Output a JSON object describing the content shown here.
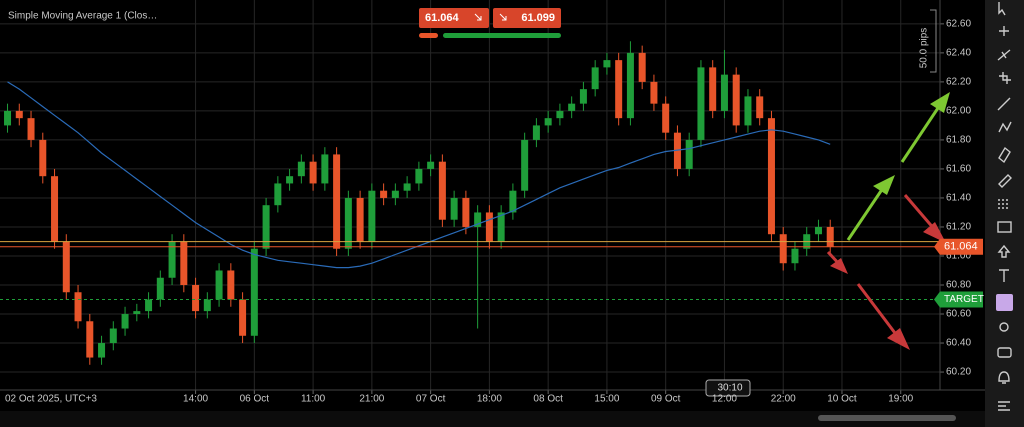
{
  "chart_data": {
    "type": "candlestick",
    "indicator_label": "Simple Moving Average 1 (Clos…",
    "pips_label": "50.0 pips",
    "timer": "30:10",
    "x_start_label": "02 Oct 2025, UTC+3",
    "up_color": "#1f9e3a",
    "down_color": "#e8552a",
    "open": [
      61.9,
      62.0,
      61.95,
      61.8,
      61.55,
      61.1,
      60.75,
      60.55,
      60.3,
      60.4,
      60.5,
      60.6,
      60.62,
      60.7,
      60.85,
      61.1,
      60.8,
      60.62,
      60.7,
      60.9,
      60.7,
      60.45,
      61.05,
      61.35,
      61.5,
      61.55,
      61.65,
      61.5,
      61.7,
      61.05,
      61.4,
      61.1,
      61.45,
      61.4,
      61.45,
      61.5,
      61.6,
      61.65,
      61.25,
      61.4,
      61.2,
      61.3,
      61.1,
      61.3,
      61.45,
      61.8,
      61.9,
      61.95,
      62.0,
      62.05,
      62.15,
      62.3,
      62.35,
      61.95,
      62.4,
      62.2,
      62.05,
      61.85,
      61.6,
      61.8,
      62.3,
      62.0,
      62.25,
      61.9,
      62.1,
      61.95,
      61.15,
      60.95,
      61.05,
      61.15,
      61.2
    ],
    "high": [
      62.05,
      62.05,
      62.0,
      61.85,
      61.6,
      61.15,
      60.8,
      60.6,
      60.45,
      60.55,
      60.65,
      60.67,
      60.75,
      60.9,
      61.15,
      61.15,
      60.85,
      60.75,
      60.95,
      60.95,
      60.75,
      61.1,
      61.4,
      61.55,
      61.6,
      61.7,
      61.7,
      61.75,
      61.75,
      61.45,
      61.45,
      61.5,
      61.5,
      61.5,
      61.55,
      61.65,
      61.7,
      61.7,
      61.45,
      61.45,
      61.35,
      61.35,
      61.35,
      61.5,
      61.85,
      61.95,
      62.0,
      62.05,
      62.1,
      62.2,
      62.35,
      62.4,
      62.4,
      62.48,
      62.45,
      62.25,
      62.1,
      61.9,
      61.85,
      62.35,
      62.35,
      62.42,
      62.3,
      62.15,
      62.15,
      62.0,
      61.2,
      61.1,
      61.2,
      61.25,
      61.25
    ],
    "low": [
      61.85,
      61.9,
      61.75,
      61.5,
      61.05,
      60.7,
      60.5,
      60.25,
      60.25,
      60.35,
      60.45,
      60.55,
      60.57,
      60.65,
      60.8,
      60.75,
      60.57,
      60.57,
      60.65,
      60.65,
      60.4,
      60.4,
      61.0,
      61.3,
      61.45,
      61.5,
      61.45,
      61.45,
      61.0,
      61.0,
      61.05,
      61.05,
      61.35,
      61.35,
      61.4,
      61.45,
      61.55,
      61.2,
      61.2,
      61.15,
      60.5,
      61.05,
      61.05,
      61.25,
      61.4,
      61.75,
      61.85,
      61.9,
      61.95,
      62.0,
      62.1,
      62.25,
      61.9,
      61.9,
      62.15,
      62.0,
      61.8,
      61.55,
      61.55,
      61.75,
      61.95,
      61.95,
      61.85,
      61.85,
      61.9,
      61.1,
      60.9,
      60.9,
      61.0,
      61.1,
      61.02
    ],
    "close": [
      62.0,
      61.95,
      61.8,
      61.55,
      61.1,
      60.75,
      60.55,
      60.3,
      60.4,
      60.5,
      60.6,
      60.62,
      60.7,
      60.85,
      61.1,
      60.8,
      60.62,
      60.7,
      60.9,
      60.7,
      60.45,
      61.05,
      61.35,
      61.5,
      61.55,
      61.65,
      61.5,
      61.7,
      61.05,
      61.4,
      61.1,
      61.45,
      61.4,
      61.45,
      61.5,
      61.6,
      61.65,
      61.25,
      61.4,
      61.2,
      61.3,
      61.1,
      61.3,
      61.45,
      61.8,
      61.9,
      61.95,
      62.0,
      62.05,
      62.15,
      62.3,
      62.35,
      61.95,
      62.4,
      62.2,
      62.05,
      61.85,
      61.6,
      61.8,
      62.3,
      62.0,
      62.25,
      61.9,
      62.1,
      61.95,
      61.15,
      60.95,
      61.05,
      61.15,
      61.2,
      61.064
    ],
    "ma": {
      "color": "#2a6bb8",
      "values": [
        62.2,
        62.15,
        62.09,
        62.03,
        61.97,
        61.91,
        61.85,
        61.78,
        61.71,
        61.65,
        61.59,
        61.53,
        61.47,
        61.41,
        61.35,
        61.29,
        61.23,
        61.18,
        61.13,
        61.08,
        61.04,
        61.01,
        60.99,
        60.97,
        60.96,
        60.95,
        60.94,
        60.93,
        60.92,
        60.92,
        60.93,
        60.95,
        60.98,
        61.01,
        61.04,
        61.07,
        61.1,
        61.13,
        61.16,
        61.19,
        61.22,
        61.25,
        61.28,
        61.31,
        61.35,
        61.39,
        61.43,
        61.47,
        61.5,
        61.53,
        61.56,
        61.59,
        61.61,
        61.64,
        61.67,
        61.7,
        61.72,
        61.73,
        61.74,
        61.76,
        61.78,
        61.8,
        61.82,
        61.84,
        61.86,
        61.87,
        61.86,
        61.84,
        61.82,
        61.8,
        61.77
      ]
    },
    "bid": 61.064,
    "ask": 61.099,
    "bid_color": "#e8552a",
    "ask_color": "#d9a441",
    "target": {
      "label": "TARGET",
      "value": 60.7,
      "color": "#1f9e3a"
    },
    "ylim": [
      60.09,
      62.73
    ],
    "yticks": [
      {
        "value": 60.2,
        "label": "60.20"
      },
      {
        "value": 60.4,
        "label": "60.40"
      },
      {
        "value": 60.6,
        "label": "60.60"
      },
      {
        "value": 60.8,
        "label": "60.80"
      },
      {
        "value": 61.0,
        "label": "61.00"
      },
      {
        "value": 61.2,
        "label": "61.20"
      },
      {
        "value": 61.4,
        "label": "61.40"
      },
      {
        "value": 61.6,
        "label": "61.60"
      },
      {
        "value": 61.8,
        "label": "61.80"
      },
      {
        "value": 62.0,
        "label": "62.00"
      },
      {
        "value": 62.2,
        "label": "62.20"
      },
      {
        "value": 62.4,
        "label": "62.40"
      },
      {
        "value": 62.6,
        "label": "62.60"
      }
    ],
    "xlim": [
      -0.3,
      79
    ],
    "xticks": [
      {
        "value": 16,
        "label": "14:00"
      },
      {
        "value": 21,
        "label": "06 Oct"
      },
      {
        "value": 26,
        "label": "11:00"
      },
      {
        "value": 31,
        "label": "21:00"
      },
      {
        "value": 36,
        "label": "07 Oct"
      },
      {
        "value": 41,
        "label": "18:00"
      },
      {
        "value": 46,
        "label": "08 Oct"
      },
      {
        "value": 51,
        "label": "15:00"
      },
      {
        "value": 56,
        "label": "09 Oct"
      },
      {
        "value": 61,
        "label": "12:00"
      },
      {
        "value": 66,
        "label": "22:00"
      },
      {
        "value": 71,
        "label": "10 Oct"
      },
      {
        "value": 76,
        "label": "19:00"
      }
    ],
    "grid": true
  }
}
